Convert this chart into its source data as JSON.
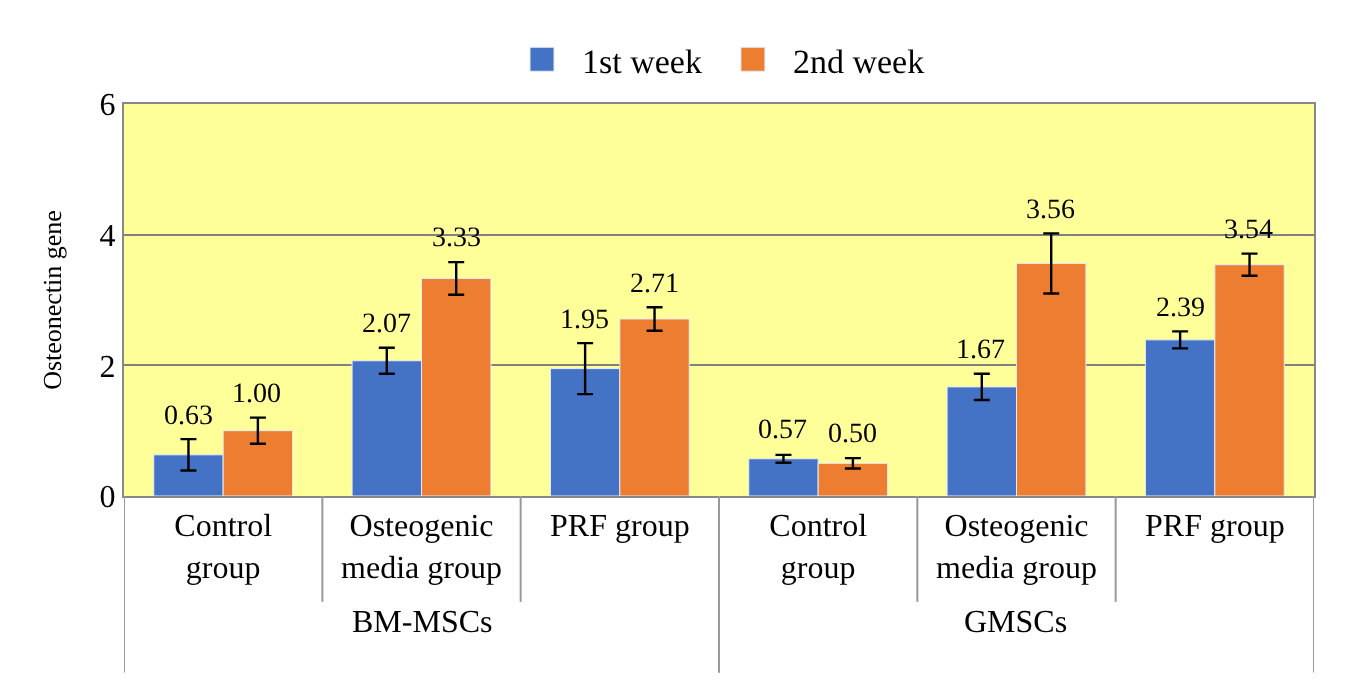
{
  "chart_data": {
    "type": "bar",
    "ylabel": "Osteonectin gene",
    "categories": [
      "Control group",
      "Osteogenic media group",
      "PRF group",
      "Control group",
      "Osteogenic media group",
      "PRF group"
    ],
    "series": [
      {
        "name": "1st week",
        "color": "#4472c4",
        "values": [
          0.63,
          2.07,
          1.95,
          0.57,
          1.67,
          2.39
        ],
        "errors": [
          0.24,
          0.2,
          0.39,
          0.06,
          0.2,
          0.13
        ],
        "value_labels": [
          "0.63",
          "2.07",
          "1.95",
          "0.57",
          "1.67",
          "2.39"
        ]
      },
      {
        "name": "2nd week",
        "color": "#ed7d31",
        "values": [
          1.0,
          3.33,
          2.71,
          0.5,
          3.56,
          3.54
        ],
        "errors": [
          0.2,
          0.25,
          0.18,
          0.08,
          0.46,
          0.17
        ],
        "value_labels": [
          "1.00",
          "3.33",
          "2.71",
          "0.50",
          "3.56",
          "3.54"
        ]
      }
    ],
    "annotations": [
      "BM-MSCs",
      "GMSCs"
    ],
    "ylim": [
      0,
      6
    ],
    "yticks": [
      0,
      2,
      4,
      6
    ],
    "grid": "y",
    "legend": "top"
  }
}
